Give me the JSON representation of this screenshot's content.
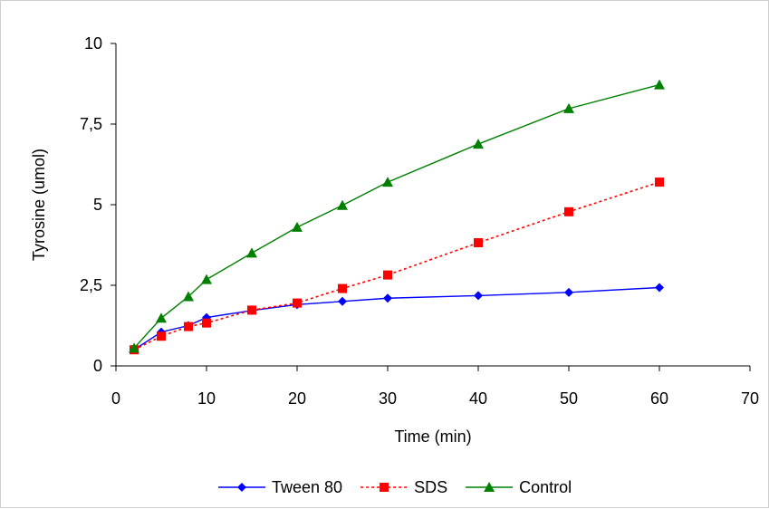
{
  "chart_data": {
    "type": "line",
    "title": "",
    "xlabel": "Time (min)",
    "ylabel": "Tyrosine (umol)",
    "xlim": [
      0,
      70
    ],
    "ylim": [
      0,
      10
    ],
    "x_ticks": [
      0,
      10,
      20,
      30,
      40,
      50,
      60,
      70
    ],
    "x_tick_labels": [
      "0",
      "10",
      "20",
      "30",
      "40",
      "50",
      "60",
      "70"
    ],
    "y_ticks": [
      0,
      2.5,
      5,
      7.5,
      10
    ],
    "y_tick_labels": [
      "0",
      "2,5",
      "5",
      "7,5",
      "10"
    ],
    "grid": false,
    "legend_position": "bottom",
    "x": [
      2,
      5,
      8,
      10,
      15,
      20,
      25,
      30,
      40,
      50,
      60
    ],
    "series": [
      {
        "name": "Tween 80",
        "color": "#0000ff",
        "marker": "diamond",
        "line_style": "solid",
        "values": [
          0.5,
          1.05,
          1.25,
          1.5,
          1.72,
          1.9,
          2.0,
          2.1,
          2.18,
          2.28,
          2.43
        ]
      },
      {
        "name": "SDS",
        "color": "#ff0000",
        "marker": "square",
        "line_style": "dotted",
        "values": [
          0.5,
          0.92,
          1.22,
          1.33,
          1.73,
          1.95,
          2.4,
          2.82,
          3.82,
          4.78,
          5.7
        ]
      },
      {
        "name": "Control",
        "color": "#008000",
        "marker": "triangle",
        "line_style": "solid",
        "values": [
          0.55,
          1.48,
          2.15,
          2.68,
          3.5,
          4.3,
          4.98,
          5.7,
          6.88,
          7.98,
          8.72
        ]
      }
    ]
  }
}
